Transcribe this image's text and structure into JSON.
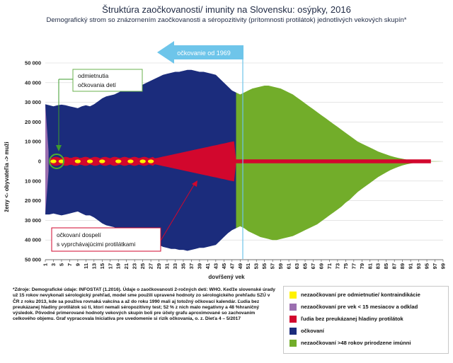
{
  "chart_data": {
    "type": "area",
    "title": "Štruktúra zaočkovanosti/ imunity na Slovensku: osýpky, 2016",
    "subtitle": "Demografický strom so znázornením zaočkovanosti a séropozitivity (prítomnosti protilátok) jednotlivých vekových skupín*",
    "xlabel": "dovŕšený vek",
    "ylabel": "ženy <- obyvateľia -> muži",
    "ylim": [
      -50000,
      50000
    ],
    "xlim": [
      1,
      99
    ],
    "y_ticks": [
      "50 000",
      "40 000",
      "30 000",
      "20 000",
      "10 000",
      "0",
      "10 000",
      "20 000",
      "30 000",
      "40 000",
      "50 000"
    ],
    "y_tick_values": [
      50000,
      40000,
      30000,
      20000,
      10000,
      0,
      -10000,
      -20000,
      -30000,
      -40000,
      -50000
    ],
    "x_ticks": [
      1,
      3,
      5,
      7,
      9,
      11,
      13,
      15,
      17,
      19,
      21,
      23,
      25,
      27,
      29,
      31,
      33,
      35,
      37,
      39,
      41,
      43,
      45,
      47,
      49,
      51,
      53,
      55,
      57,
      59,
      61,
      63,
      65,
      67,
      69,
      71,
      73,
      75,
      77,
      79,
      81,
      83,
      85,
      87,
      89,
      91,
      93,
      95,
      97,
      99
    ],
    "grid": true,
    "population_by_age": {
      "ages": [
        1,
        2,
        3,
        4,
        5,
        6,
        7,
        8,
        9,
        10,
        11,
        12,
        13,
        14,
        15,
        16,
        17,
        18,
        19,
        20,
        21,
        22,
        23,
        24,
        25,
        26,
        27,
        28,
        29,
        30,
        31,
        32,
        33,
        34,
        35,
        36,
        37,
        38,
        39,
        40,
        41,
        42,
        43,
        44,
        45,
        46,
        47,
        48,
        49,
        50,
        51,
        52,
        53,
        54,
        55,
        56,
        57,
        58,
        59,
        60,
        61,
        62,
        63,
        64,
        65,
        66,
        67,
        68,
        69,
        70,
        71,
        72,
        73,
        74,
        75,
        76,
        77,
        78,
        79,
        80,
        81,
        82,
        83,
        84,
        85,
        86,
        87,
        88,
        89,
        90,
        91,
        92,
        93,
        94,
        95,
        96,
        97,
        98,
        99
      ],
      "men": [
        29000,
        28500,
        28000,
        28500,
        28800,
        28500,
        28000,
        27500,
        27000,
        28000,
        28500,
        28000,
        29000,
        30500,
        32000,
        33000,
        33500,
        34000,
        35000,
        36000,
        37000,
        37500,
        38000,
        38500,
        39000,
        40000,
        41000,
        42000,
        43000,
        44000,
        44500,
        45000,
        45500,
        45500,
        46000,
        46500,
        46500,
        46000,
        45500,
        45500,
        45000,
        44500,
        44000,
        42000,
        40000,
        38000,
        36000,
        35000,
        34000,
        35000,
        36000,
        37000,
        37500,
        38000,
        38500,
        38500,
        38000,
        37500,
        37000,
        36000,
        35000,
        34000,
        32500,
        31000,
        29500,
        28000,
        26500,
        25000,
        23500,
        22000,
        20500,
        19000,
        17500,
        16000,
        14500,
        13000,
        11500,
        10000,
        9000,
        8000,
        7000,
        6000,
        5000,
        4200,
        3500,
        2800,
        2200,
        1700,
        1300,
        900,
        650,
        450,
        300,
        200,
        120,
        80,
        50,
        30,
        10
      ],
      "women": [
        27000,
        27000,
        26500,
        27000,
        27500,
        27000,
        26500,
        26000,
        25500,
        26500,
        27500,
        27500,
        28500,
        30000,
        31500,
        32500,
        33000,
        33500,
        34500,
        35500,
        36500,
        37000,
        37500,
        38000,
        38500,
        39500,
        40500,
        41500,
        42500,
        43500,
        44000,
        44500,
        44500,
        45000,
        45000,
        45500,
        45000,
        44500,
        44000,
        44000,
        43500,
        43000,
        42500,
        40500,
        38500,
        36500,
        35000,
        34000,
        33000,
        34000,
        35500,
        36500,
        37500,
        38500,
        39000,
        39500,
        40000,
        40000,
        39500,
        39000,
        38500,
        38000,
        37000,
        36000,
        35000,
        34000,
        33000,
        32000,
        30500,
        29000,
        27500,
        26000,
        24500,
        23000,
        21000,
        19500,
        17500,
        15500,
        14000,
        12500,
        11000,
        9500,
        8000,
        6800,
        5600,
        4500,
        3600,
        2800,
        2100,
        1500,
        1100,
        750,
        500,
        330,
        200,
        120,
        70,
        40,
        15
      ]
    },
    "series": [
      {
        "name": "nezaočkovaní pre odmietnutie/ kontraindikácie",
        "color": "#fff200"
      },
      {
        "name": "nezaočkovaní pre vek < 15 mesiacov a odklad",
        "color": "#9b6fb0"
      },
      {
        "name": "ľudia bez preukázanej hladiny protilátok",
        "color": "#d2072d"
      },
      {
        "name": "očkovaní",
        "color": "#1b2c7c"
      },
      {
        "name": "nezaočkovaní >48 rokov prirodzene imúnni",
        "color": "#72ad2a"
      }
    ],
    "vaccination_since_age": 48,
    "annotations": {
      "arrow_label": "očkovanie od 1969",
      "refusal_label_1": "odmietnutia",
      "refusal_label_2": "očkovania detí",
      "adults_label_1": "očkovaní dospelí",
      "adults_label_2": "s vyprchávajúcimi protilátkami"
    }
  },
  "footnote": "*Zdroje: Demografické údaje: INFOSTAT (1.2016). Údaje o zaočkovanosti 2-ročných detí: WHO. Keďže slovenské úrady už 15 rokov nevykonali sérologický prehľad, model sme použili upravené hodnoty zo sérologického prehľadu SZÚ v ČR z roku 2013, kde sa používa rovnaká vakcína a až do roku 1990 mali aj totožný očkovací kalendár. Ľudia bez preukázanej hladiny protilátok sú ti, ktorí nemali séropozitívny test; 52 % z nich malo negatívny a 48 %hraničný výsledok. Pôvodné primerované hodnoty vekových skupín boli pre účely grafu aproximované so zachovaním celkového objemu. Graf vypracovala Iniciatíva pre uvedomenie si rizík očkovania, o. z. Dieťa 4 – 5/2017"
}
